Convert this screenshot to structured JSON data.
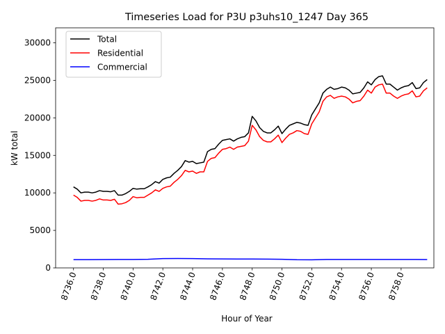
{
  "chart_data": {
    "type": "line",
    "title": "Timeseries Load for P3U p3uhs10_1247  Day 365",
    "xlabel": "Hour of Year",
    "ylabel": "kW total",
    "xlim": [
      8734.8,
      8760.2
    ],
    "ylim": [
      0,
      32000
    ],
    "grid": false,
    "legend_position": "top-left",
    "x_ticks": [
      8736,
      8738,
      8740,
      8742,
      8744,
      8746,
      8748,
      8750,
      8752,
      8754,
      8756,
      8758
    ],
    "x_tick_labels": [
      "8736.0",
      "8738.0",
      "8740.0",
      "8742.0",
      "8744.0",
      "8746.0",
      "8748.0",
      "8750.0",
      "8752.0",
      "8754.0",
      "8756.0",
      "8758.0"
    ],
    "y_ticks": [
      0,
      5000,
      10000,
      15000,
      20000,
      25000,
      30000
    ],
    "y_tick_labels": [
      "0",
      "5000",
      "10000",
      "15000",
      "20000",
      "25000",
      "30000"
    ],
    "series": [
      {
        "name": "Total",
        "color": "#000000",
        "points": [
          [
            8736,
            10800
          ],
          [
            8736.25,
            10500
          ],
          [
            8736.5,
            10000
          ],
          [
            8736.75,
            10100
          ],
          [
            8737,
            10100
          ],
          [
            8737.25,
            10000
          ],
          [
            8737.5,
            10100
          ],
          [
            8737.75,
            10300
          ],
          [
            8738,
            10200
          ],
          [
            8738.25,
            10200
          ],
          [
            8738.5,
            10150
          ],
          [
            8738.75,
            10300
          ],
          [
            8739,
            9700
          ],
          [
            8739.25,
            9700
          ],
          [
            8739.5,
            9900
          ],
          [
            8739.75,
            10200
          ],
          [
            8740,
            10600
          ],
          [
            8740.25,
            10500
          ],
          [
            8740.5,
            10550
          ],
          [
            8740.75,
            10550
          ],
          [
            8741,
            10800
          ],
          [
            8741.25,
            11100
          ],
          [
            8741.5,
            11500
          ],
          [
            8741.75,
            11300
          ],
          [
            8742,
            11800
          ],
          [
            8742.25,
            12000
          ],
          [
            8742.5,
            12100
          ],
          [
            8742.75,
            12600
          ],
          [
            8743,
            13000
          ],
          [
            8743.25,
            13500
          ],
          [
            8743.5,
            14300
          ],
          [
            8743.75,
            14100
          ],
          [
            8744,
            14200
          ],
          [
            8744.25,
            13900
          ],
          [
            8744.5,
            14000
          ],
          [
            8744.75,
            14100
          ],
          [
            8745,
            15500
          ],
          [
            8745.25,
            15800
          ],
          [
            8745.5,
            15900
          ],
          [
            8745.75,
            16500
          ],
          [
            8746,
            17000
          ],
          [
            8746.25,
            17100
          ],
          [
            8746.5,
            17200
          ],
          [
            8746.75,
            16900
          ],
          [
            8747,
            17200
          ],
          [
            8747.25,
            17400
          ],
          [
            8747.5,
            17500
          ],
          [
            8747.75,
            18000
          ],
          [
            8748,
            20200
          ],
          [
            8748.25,
            19600
          ],
          [
            8748.5,
            18700
          ],
          [
            8748.75,
            18200
          ],
          [
            8749,
            18000
          ],
          [
            8749.25,
            18000
          ],
          [
            8749.5,
            18400
          ],
          [
            8749.75,
            18900
          ],
          [
            8750,
            17900
          ],
          [
            8750.25,
            18500
          ],
          [
            8750.5,
            19000
          ],
          [
            8750.75,
            19200
          ],
          [
            8751,
            19400
          ],
          [
            8751.25,
            19300
          ],
          [
            8751.5,
            19100
          ],
          [
            8751.75,
            19000
          ],
          [
            8752,
            20400
          ],
          [
            8752.25,
            21200
          ],
          [
            8752.5,
            22000
          ],
          [
            8752.75,
            23300
          ],
          [
            8753,
            23800
          ],
          [
            8753.25,
            24100
          ],
          [
            8753.5,
            23800
          ],
          [
            8753.75,
            23900
          ],
          [
            8754,
            24100
          ],
          [
            8754.25,
            24000
          ],
          [
            8754.5,
            23700
          ],
          [
            8754.75,
            23200
          ],
          [
            8755,
            23300
          ],
          [
            8755.25,
            23400
          ],
          [
            8755.5,
            24000
          ],
          [
            8755.75,
            24800
          ],
          [
            8756,
            24400
          ],
          [
            8756.25,
            25100
          ],
          [
            8756.5,
            25500
          ],
          [
            8756.75,
            25600
          ],
          [
            8757,
            24500
          ],
          [
            8757.25,
            24500
          ],
          [
            8757.5,
            24100
          ],
          [
            8757.75,
            23700
          ],
          [
            8758,
            24000
          ],
          [
            8758.25,
            24200
          ],
          [
            8758.5,
            24300
          ],
          [
            8758.75,
            24700
          ],
          [
            8759,
            23900
          ],
          [
            8759.25,
            24000
          ],
          [
            8759.5,
            24700
          ],
          [
            8759.75,
            25100
          ]
        ]
      },
      {
        "name": "Residential",
        "color": "#ff0000",
        "points": [
          [
            8736,
            9700
          ],
          [
            8736.25,
            9400
          ],
          [
            8736.5,
            8900
          ],
          [
            8736.75,
            9000
          ],
          [
            8737,
            9000
          ],
          [
            8737.25,
            8900
          ],
          [
            8737.5,
            9000
          ],
          [
            8737.75,
            9200
          ],
          [
            8738,
            9050
          ],
          [
            8738.25,
            9050
          ],
          [
            8738.5,
            9000
          ],
          [
            8738.75,
            9150
          ],
          [
            8739,
            8500
          ],
          [
            8739.25,
            8550
          ],
          [
            8739.5,
            8700
          ],
          [
            8739.75,
            9000
          ],
          [
            8740,
            9500
          ],
          [
            8740.25,
            9350
          ],
          [
            8740.5,
            9400
          ],
          [
            8740.75,
            9400
          ],
          [
            8741,
            9700
          ],
          [
            8741.25,
            10000
          ],
          [
            8741.5,
            10400
          ],
          [
            8741.75,
            10200
          ],
          [
            8742,
            10600
          ],
          [
            8742.25,
            10800
          ],
          [
            8742.5,
            10900
          ],
          [
            8742.75,
            11400
          ],
          [
            8743,
            11800
          ],
          [
            8743.25,
            12300
          ],
          [
            8743.5,
            13000
          ],
          [
            8743.75,
            12800
          ],
          [
            8744,
            12900
          ],
          [
            8744.25,
            12600
          ],
          [
            8744.5,
            12800
          ],
          [
            8744.75,
            12800
          ],
          [
            8745,
            14200
          ],
          [
            8745.25,
            14600
          ],
          [
            8745.5,
            14700
          ],
          [
            8745.75,
            15300
          ],
          [
            8746,
            15800
          ],
          [
            8746.25,
            15900
          ],
          [
            8746.5,
            16100
          ],
          [
            8746.75,
            15800
          ],
          [
            8747,
            16100
          ],
          [
            8747.25,
            16200
          ],
          [
            8747.5,
            16300
          ],
          [
            8747.75,
            16900
          ],
          [
            8748,
            19000
          ],
          [
            8748.25,
            18400
          ],
          [
            8748.5,
            17500
          ],
          [
            8748.75,
            17000
          ],
          [
            8749,
            16800
          ],
          [
            8749.25,
            16800
          ],
          [
            8749.5,
            17200
          ],
          [
            8749.75,
            17700
          ],
          [
            8750,
            16700
          ],
          [
            8750.25,
            17300
          ],
          [
            8750.5,
            17800
          ],
          [
            8750.75,
            18000
          ],
          [
            8751,
            18300
          ],
          [
            8751.25,
            18200
          ],
          [
            8751.5,
            17900
          ],
          [
            8751.75,
            17800
          ],
          [
            8752,
            19200
          ],
          [
            8752.25,
            20000
          ],
          [
            8752.5,
            20800
          ],
          [
            8752.75,
            22200
          ],
          [
            8753,
            22800
          ],
          [
            8753.25,
            23000
          ],
          [
            8753.5,
            22600
          ],
          [
            8753.75,
            22800
          ],
          [
            8754,
            22900
          ],
          [
            8754.25,
            22800
          ],
          [
            8754.5,
            22500
          ],
          [
            8754.75,
            22000
          ],
          [
            8755,
            22200
          ],
          [
            8755.25,
            22300
          ],
          [
            8755.5,
            22900
          ],
          [
            8755.75,
            23700
          ],
          [
            8756,
            23300
          ],
          [
            8756.25,
            24100
          ],
          [
            8756.5,
            24400
          ],
          [
            8756.75,
            24500
          ],
          [
            8757,
            23300
          ],
          [
            8757.25,
            23300
          ],
          [
            8757.5,
            22900
          ],
          [
            8757.75,
            22600
          ],
          [
            8758,
            22900
          ],
          [
            8758.25,
            23100
          ],
          [
            8758.5,
            23200
          ],
          [
            8758.75,
            23600
          ],
          [
            8759,
            22800
          ],
          [
            8759.25,
            22900
          ],
          [
            8759.5,
            23600
          ],
          [
            8759.75,
            24000
          ]
        ]
      },
      {
        "name": "Commercial",
        "color": "#0000ff",
        "points": [
          [
            8736,
            1100
          ],
          [
            8737,
            1100
          ],
          [
            8738,
            1110
          ],
          [
            8739,
            1120
          ],
          [
            8740,
            1120
          ],
          [
            8741,
            1150
          ],
          [
            8742,
            1240
          ],
          [
            8743,
            1250
          ],
          [
            8744,
            1240
          ],
          [
            8745,
            1200
          ],
          [
            8746,
            1190
          ],
          [
            8747,
            1180
          ],
          [
            8748,
            1180
          ],
          [
            8749,
            1170
          ],
          [
            8750,
            1150
          ],
          [
            8751,
            1090
          ],
          [
            8752,
            1080
          ],
          [
            8753,
            1130
          ],
          [
            8754,
            1130
          ],
          [
            8755,
            1130
          ],
          [
            8756,
            1130
          ],
          [
            8757,
            1130
          ],
          [
            8758,
            1130
          ],
          [
            8759,
            1120
          ],
          [
            8759.75,
            1110
          ]
        ]
      }
    ]
  }
}
